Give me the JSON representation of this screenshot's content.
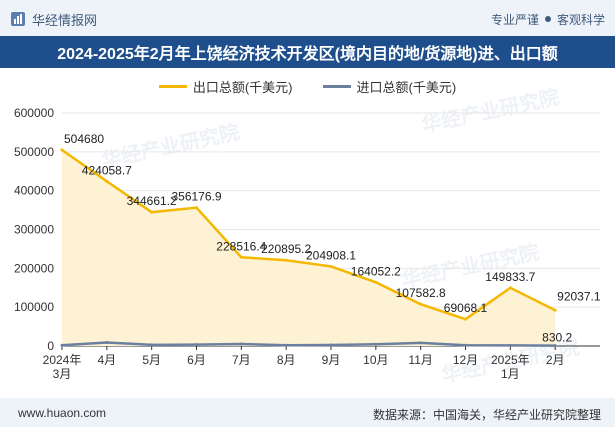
{
  "header": {
    "brand": "华经情报网",
    "badge1": "专业严谨",
    "badge2": "客观科学"
  },
  "title": "2024-2025年2月年上饶经济技术开发区(境内目的地/货源地)进、出口额",
  "watermark": "华经产业研究院",
  "footer": {
    "site": "www.huaon.com",
    "source": "数据来源：中国海关，华经产业研究院整理"
  },
  "colors": {
    "export": "#f5b800",
    "import": "#6b7f9e",
    "area": "#fdf2d4",
    "title_bg": "#1e4f8c"
  },
  "chart_data": {
    "type": "area",
    "categories": [
      "2024年3月",
      "4月",
      "5月",
      "6月",
      "7月",
      "8月",
      "9月",
      "10月",
      "11月",
      "12月",
      "2025年1月",
      "2月"
    ],
    "ylim": [
      0,
      600000
    ],
    "yticks": [
      "0",
      "100000",
      "200000",
      "300000",
      "400000",
      "500000",
      "600000"
    ],
    "series": [
      {
        "name": "出口总额(千美元)",
        "values": [
          504680,
          424058.7,
          344661.2,
          356176.9,
          228516.4,
          220895.2,
          204908.1,
          164052.2,
          107582.8,
          69068.1,
          149833.7,
          92037.1
        ],
        "labels": [
          "504680",
          "424058.7",
          "344661.2",
          "356176.9",
          "228516.4",
          "220895.2",
          "204908.1",
          "164052.2",
          "107582.8",
          "69068.1",
          "149833.7",
          "92037.1"
        ]
      },
      {
        "name": "进口总额(千美元)",
        "values": [
          2000,
          9000,
          3000,
          3500,
          5000,
          2000,
          2500,
          4500,
          8000,
          2000,
          1500,
          830.2
        ],
        "labels": [
          "",
          "",
          "",
          "",
          "",
          "",
          "",
          "",
          "",
          "",
          "",
          "830.2"
        ]
      }
    ]
  }
}
